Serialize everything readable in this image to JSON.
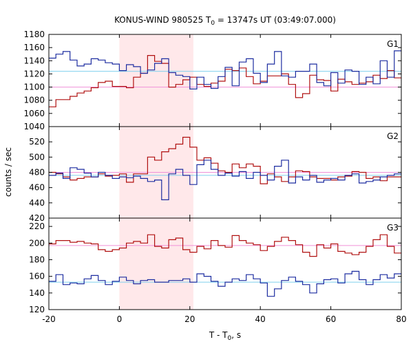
{
  "chart_data": {
    "type": "line",
    "title": {
      "prefix": "KONUS-WIND 980525 T",
      "sub": "0",
      "suffix": " = 13747s UT (03:49:07.000)"
    },
    "xlabel": {
      "prefix": "T - T",
      "sub": "0",
      "suffix": ", s"
    },
    "ylabel": "counts / sec",
    "xlim": [
      -20,
      80
    ],
    "xticks": [
      "-20",
      "0",
      "20",
      "40",
      "60",
      "80"
    ],
    "highlight_interval": [
      0,
      21
    ],
    "colors": {
      "highlight": "#ffe8ea",
      "bin_a": "#b01010",
      "bin_b": "#1c2ca0",
      "bg_line": "#7fd0ee",
      "ref_line": "#f090d8"
    },
    "bin_width": 2.0,
    "bin_start": -20,
    "panels": [
      {
        "name": "G1",
        "ylim": [
          1040,
          1180
        ],
        "yticks": [
          "1040",
          "1060",
          "1080",
          "1100",
          "1120",
          "1140",
          "1160",
          "1180"
        ],
        "background_level": 1124,
        "reference_level": 1100,
        "series": [
          {
            "color": "bin_a",
            "values": [
              1070,
              1081,
              1081,
              1086,
              1091,
              1094,
              1099,
              1107,
              1109,
              1101,
              1101,
              1099,
              1115,
              1121,
              1148,
              1139,
              1136,
              1100,
              1104,
              1111,
              1115,
              1104,
              1101,
              1106,
              1109,
              1127,
              1125,
              1129,
              1116,
              1105,
              1109,
              1117,
              1117,
              1120,
              1104,
              1084,
              1090,
              1118,
              1111,
              1110,
              1094,
              1112,
              1108,
              1104,
              1106,
              1108,
              1118,
              1113,
              1125,
              1114
            ]
          },
          {
            "color": "bin_b",
            "values": [
              1144,
              1150,
              1154,
              1141,
              1132,
              1135,
              1143,
              1141,
              1137,
              1135,
              1125,
              1134,
              1131,
              1121,
              1126,
              1136,
              1143,
              1122,
              1118,
              1116,
              1097,
              1115,
              1104,
              1098,
              1116,
              1130,
              1102,
              1138,
              1143,
              1121,
              1107,
              1135,
              1154,
              1117,
              1115,
              1124,
              1124,
              1135,
              1107,
              1102,
              1122,
              1106,
              1126,
              1124,
              1104,
              1115,
              1105,
              1140,
              1115,
              1155
            ]
          }
        ]
      },
      {
        "name": "G2",
        "ylim": [
          420,
          540
        ],
        "yticks": [
          "420",
          "440",
          "460",
          "480",
          "500",
          "520"
        ],
        "background_level": 476,
        "reference_level": 480,
        "series": [
          {
            "color": "bin_a",
            "values": [
              480,
              478,
              474,
              470,
              472,
              474,
              474,
              478,
              475,
              476,
              478,
              467,
              478,
              478,
              500,
              496,
              507,
              511,
              517,
              526,
              513,
              496,
              499,
              492,
              482,
              480,
              491,
              486,
              491,
              488,
              465,
              478,
              474,
              468,
              474,
              482,
              481,
              474,
              472,
              472,
              470,
              474,
              475,
              481,
              480,
              472,
              474,
              469,
              474,
              474
            ]
          },
          {
            "color": "bin_b",
            "values": [
              476,
              479,
              472,
              486,
              484,
              479,
              474,
              480,
              476,
              472,
              474,
              473,
              475,
              472,
              468,
              470,
              444,
              478,
              484,
              476,
              464,
              490,
              496,
              484,
              476,
              479,
              475,
              481,
              472,
              480,
              476,
              470,
              488,
              496,
              466,
              474,
              470,
              476,
              467,
              470,
              472,
              470,
              476,
              478,
              466,
              468,
              470,
              474,
              476,
              478
            ]
          }
        ]
      },
      {
        "name": "G3",
        "ylim": [
          120,
          230
        ],
        "yticks": [
          "120",
          "140",
          "160",
          "180",
          "200",
          "220"
        ],
        "background_level": 153,
        "reference_level": 197,
        "series": [
          {
            "color": "bin_a",
            "values": [
              199,
              203,
              203,
              201,
              202,
              200,
              199,
              192,
              190,
              192,
              194,
              200,
              202,
              200,
              210,
              196,
              194,
              204,
              206,
              192,
              189,
              196,
              193,
              203,
              197,
              195,
              209,
              203,
              200,
              198,
              191,
              196,
              202,
              207,
              203,
              198,
              189,
              184,
              198,
              194,
              199,
              190,
              188,
              186,
              189,
              196,
              204,
              210,
              196,
              188
            ]
          },
          {
            "color": "bin_b",
            "values": [
              154,
              162,
              150,
              152,
              151,
              157,
              161,
              155,
              150,
              154,
              159,
              155,
              151,
              155,
              156,
              153,
              153,
              155,
              155,
              157,
              153,
              163,
              160,
              154,
              148,
              153,
              157,
              155,
              162,
              157,
              152,
              136,
              145,
              155,
              159,
              154,
              150,
              140,
              151,
              156,
              157,
              152,
              163,
              166,
              156,
              150,
              156,
              162,
              158,
              163
            ]
          }
        ]
      }
    ]
  }
}
